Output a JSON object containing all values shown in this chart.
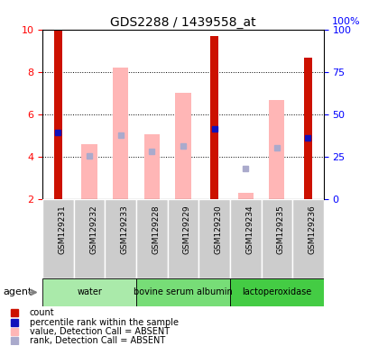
{
  "title": "GDS2288 / 1439558_at",
  "samples": [
    "GSM129231",
    "GSM129232",
    "GSM129233",
    "GSM129228",
    "GSM129229",
    "GSM129230",
    "GSM129234",
    "GSM129235",
    "GSM129236"
  ],
  "groups": [
    {
      "label": "water",
      "color": "#AAEAAA",
      "samples": [
        0,
        1,
        2
      ]
    },
    {
      "label": "bovine serum albumin",
      "color": "#66DD66",
      "samples": [
        3,
        4,
        5
      ]
    },
    {
      "label": "lactoperoxidase",
      "color": "#33CC33",
      "samples": [
        6,
        7,
        8
      ]
    }
  ],
  "red_bars": [
    {
      "idx": 0,
      "value": 10.0
    },
    {
      "idx": 5,
      "value": 9.7
    },
    {
      "idx": 8,
      "value": 8.65
    }
  ],
  "pink_bars": [
    {
      "idx": 1,
      "value": 4.6
    },
    {
      "idx": 2,
      "value": 8.2
    },
    {
      "idx": 3,
      "value": 5.05
    },
    {
      "idx": 4,
      "value": 7.0
    },
    {
      "idx": 6,
      "value": 2.3
    },
    {
      "idx": 7,
      "value": 6.65
    }
  ],
  "blue_squares": [
    {
      "idx": 0,
      "value": 5.15
    },
    {
      "idx": 5,
      "value": 5.3
    },
    {
      "idx": 8,
      "value": 4.9
    }
  ],
  "light_blue_squares": [
    {
      "idx": 1,
      "value": 4.05
    },
    {
      "idx": 2,
      "value": 5.0
    },
    {
      "idx": 3,
      "value": 4.25
    },
    {
      "idx": 4,
      "value": 4.5
    },
    {
      "idx": 6,
      "value": 3.45
    },
    {
      "idx": 7,
      "value": 4.4
    }
  ],
  "ylim": [
    2,
    10
  ],
  "yticks_left": [
    2,
    4,
    6,
    8,
    10
  ],
  "yticks_right": [
    0,
    25,
    50,
    75,
    100
  ],
  "red_bar_width": 0.28,
  "pink_bar_width": 0.5,
  "red_color": "#CC1100",
  "pink_color": "#FFB6B6",
  "blue_color": "#1111BB",
  "light_blue_color": "#AAAACC"
}
